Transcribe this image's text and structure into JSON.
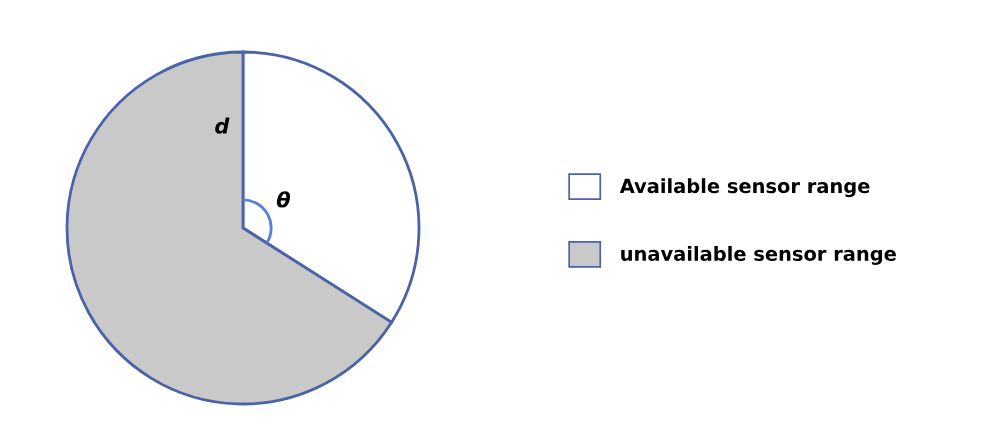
{
  "chart_data": {
    "type": "pie",
    "categories": [
      "Available sensor range",
      "unavailable sensor range"
    ],
    "values": [
      34,
      66
    ],
    "colors": [
      "#ffffff",
      "#c9c9c9"
    ],
    "legend": "right",
    "annotations": [
      "d",
      "θ"
    ]
  }
}
